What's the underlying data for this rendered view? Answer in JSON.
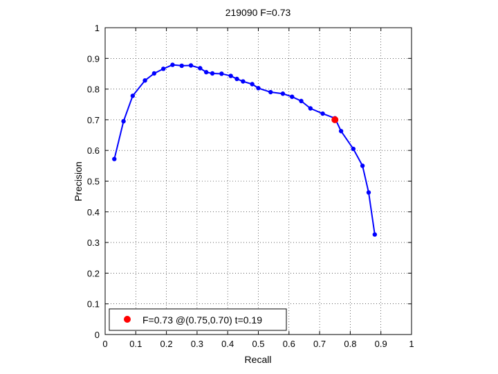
{
  "chart_data": {
    "type": "line",
    "title": "219090 F=0.73",
    "xlabel": "Recall",
    "ylabel": "Precision",
    "xlim": [
      0,
      1
    ],
    "ylim": [
      0,
      1
    ],
    "xticks": [
      "0",
      "0.1",
      "0.2",
      "0.3",
      "0.4",
      "0.5",
      "0.6",
      "0.7",
      "0.8",
      "0.9",
      "1"
    ],
    "yticks": [
      "0",
      "0.1",
      "0.2",
      "0.3",
      "0.4",
      "0.5",
      "0.6",
      "0.7",
      "0.8",
      "0.9",
      "1"
    ],
    "grid": "dotted",
    "series": [
      {
        "color": "#0000ff",
        "points": [
          [
            0.03,
            0.572
          ],
          [
            0.06,
            0.695
          ],
          [
            0.09,
            0.778
          ],
          [
            0.13,
            0.828
          ],
          [
            0.16,
            0.851
          ],
          [
            0.19,
            0.866
          ],
          [
            0.22,
            0.879
          ],
          [
            0.25,
            0.876
          ],
          [
            0.28,
            0.877
          ],
          [
            0.31,
            0.868
          ],
          [
            0.33,
            0.855
          ],
          [
            0.35,
            0.851
          ],
          [
            0.38,
            0.85
          ],
          [
            0.41,
            0.843
          ],
          [
            0.43,
            0.833
          ],
          [
            0.45,
            0.825
          ],
          [
            0.48,
            0.816
          ],
          [
            0.5,
            0.803
          ],
          [
            0.54,
            0.79
          ],
          [
            0.58,
            0.785
          ],
          [
            0.61,
            0.775
          ],
          [
            0.64,
            0.761
          ],
          [
            0.67,
            0.737
          ],
          [
            0.71,
            0.72
          ],
          [
            0.75,
            0.705
          ],
          [
            0.77,
            0.663
          ],
          [
            0.81,
            0.605
          ],
          [
            0.84,
            0.55
          ],
          [
            0.86,
            0.463
          ],
          [
            0.88,
            0.326
          ]
        ]
      }
    ],
    "highlight": {
      "color": "#ff0000",
      "x": 0.75,
      "y": 0.7,
      "label": "F=0.73 @(0.75,0.70) t=0.19"
    },
    "legend_position": "bottom-left"
  }
}
